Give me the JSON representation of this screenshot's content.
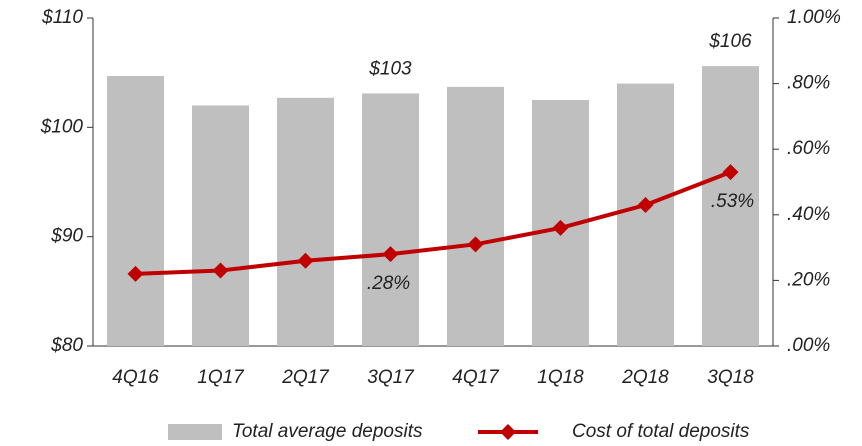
{
  "chart_data": {
    "type": "bar-line",
    "categories": [
      "4Q16",
      "1Q17",
      "2Q17",
      "3Q17",
      "4Q17",
      "1Q18",
      "2Q18",
      "3Q18"
    ],
    "series": [
      {
        "name": "Total average deposits",
        "type": "bar",
        "color": "#bfbfbf",
        "axis": "y",
        "values": [
          104.7,
          102.0,
          102.7,
          103.1,
          103.7,
          102.5,
          104.0,
          105.6
        ],
        "value_labels": [
          null,
          null,
          null,
          "$103",
          null,
          null,
          null,
          "$106"
        ]
      },
      {
        "name": "Cost of total deposits",
        "type": "line",
        "color": "#c00000",
        "axis": "y2",
        "values": [
          0.22,
          0.23,
          0.26,
          0.28,
          0.31,
          0.36,
          0.43,
          0.53
        ],
        "value_labels": [
          null,
          null,
          null,
          ".28%",
          null,
          null,
          null,
          ".53%"
        ]
      }
    ],
    "ylim": [
      80,
      110
    ],
    "yticks": [
      {
        "value": 80,
        "label": "$80"
      },
      {
        "value": 90,
        "label": "$90"
      },
      {
        "value": 100,
        "label": "$100"
      },
      {
        "value": 110,
        "label": "$110"
      }
    ],
    "y2lim": [
      0,
      1
    ],
    "y2ticks": [
      {
        "value": 0,
        "label": ".00%"
      },
      {
        "value": 0.2,
        "label": ".20%"
      },
      {
        "value": 0.4,
        "label": ".40%"
      },
      {
        "value": 0.6,
        "label": ".60%"
      },
      {
        "value": 0.8,
        "label": ".80%"
      },
      {
        "value": 1,
        "label": "1.00%"
      }
    ],
    "grid": false,
    "legend": "bottom"
  }
}
